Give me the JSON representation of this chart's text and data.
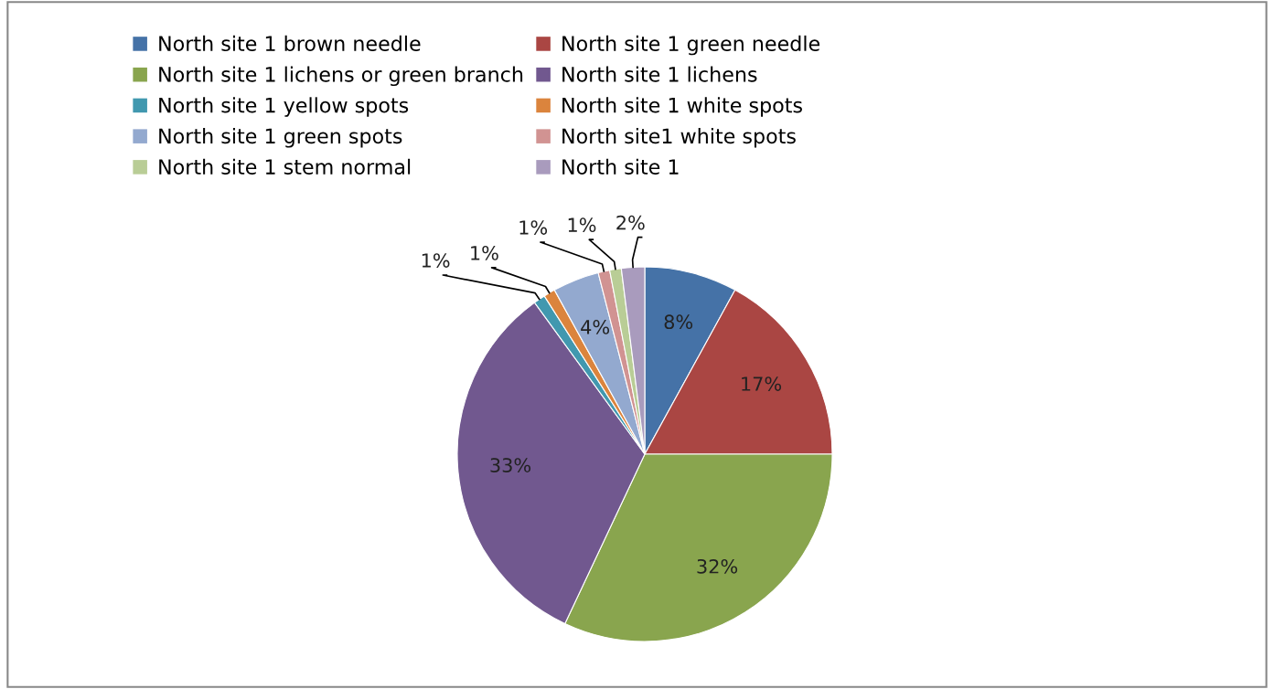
{
  "chart_data": {
    "type": "pie",
    "categories": [
      "North site 1 brown needle",
      "North site 1 green needle",
      "North site 1 lichens or green branch",
      "North site 1 lichens",
      "North site 1 yellow spots",
      "North site 1 white spots",
      "North site 1 green spots",
      "North site1 white spots",
      "North site 1 stem normal",
      "North site 1"
    ],
    "values": [
      8,
      17,
      32,
      33,
      1,
      1,
      4,
      1,
      1,
      2
    ],
    "colors": [
      "#4572a7",
      "#aa4643",
      "#89a54e",
      "#71588f",
      "#4198af",
      "#db843d",
      "#93a9cf",
      "#d19392",
      "#b9cd96",
      "#a99bbd"
    ],
    "value_labels": [
      "8%",
      "17%",
      "32%",
      "33%",
      "1%",
      "1%",
      "4%",
      "1%",
      "1%",
      "2%"
    ],
    "legend": "top"
  }
}
